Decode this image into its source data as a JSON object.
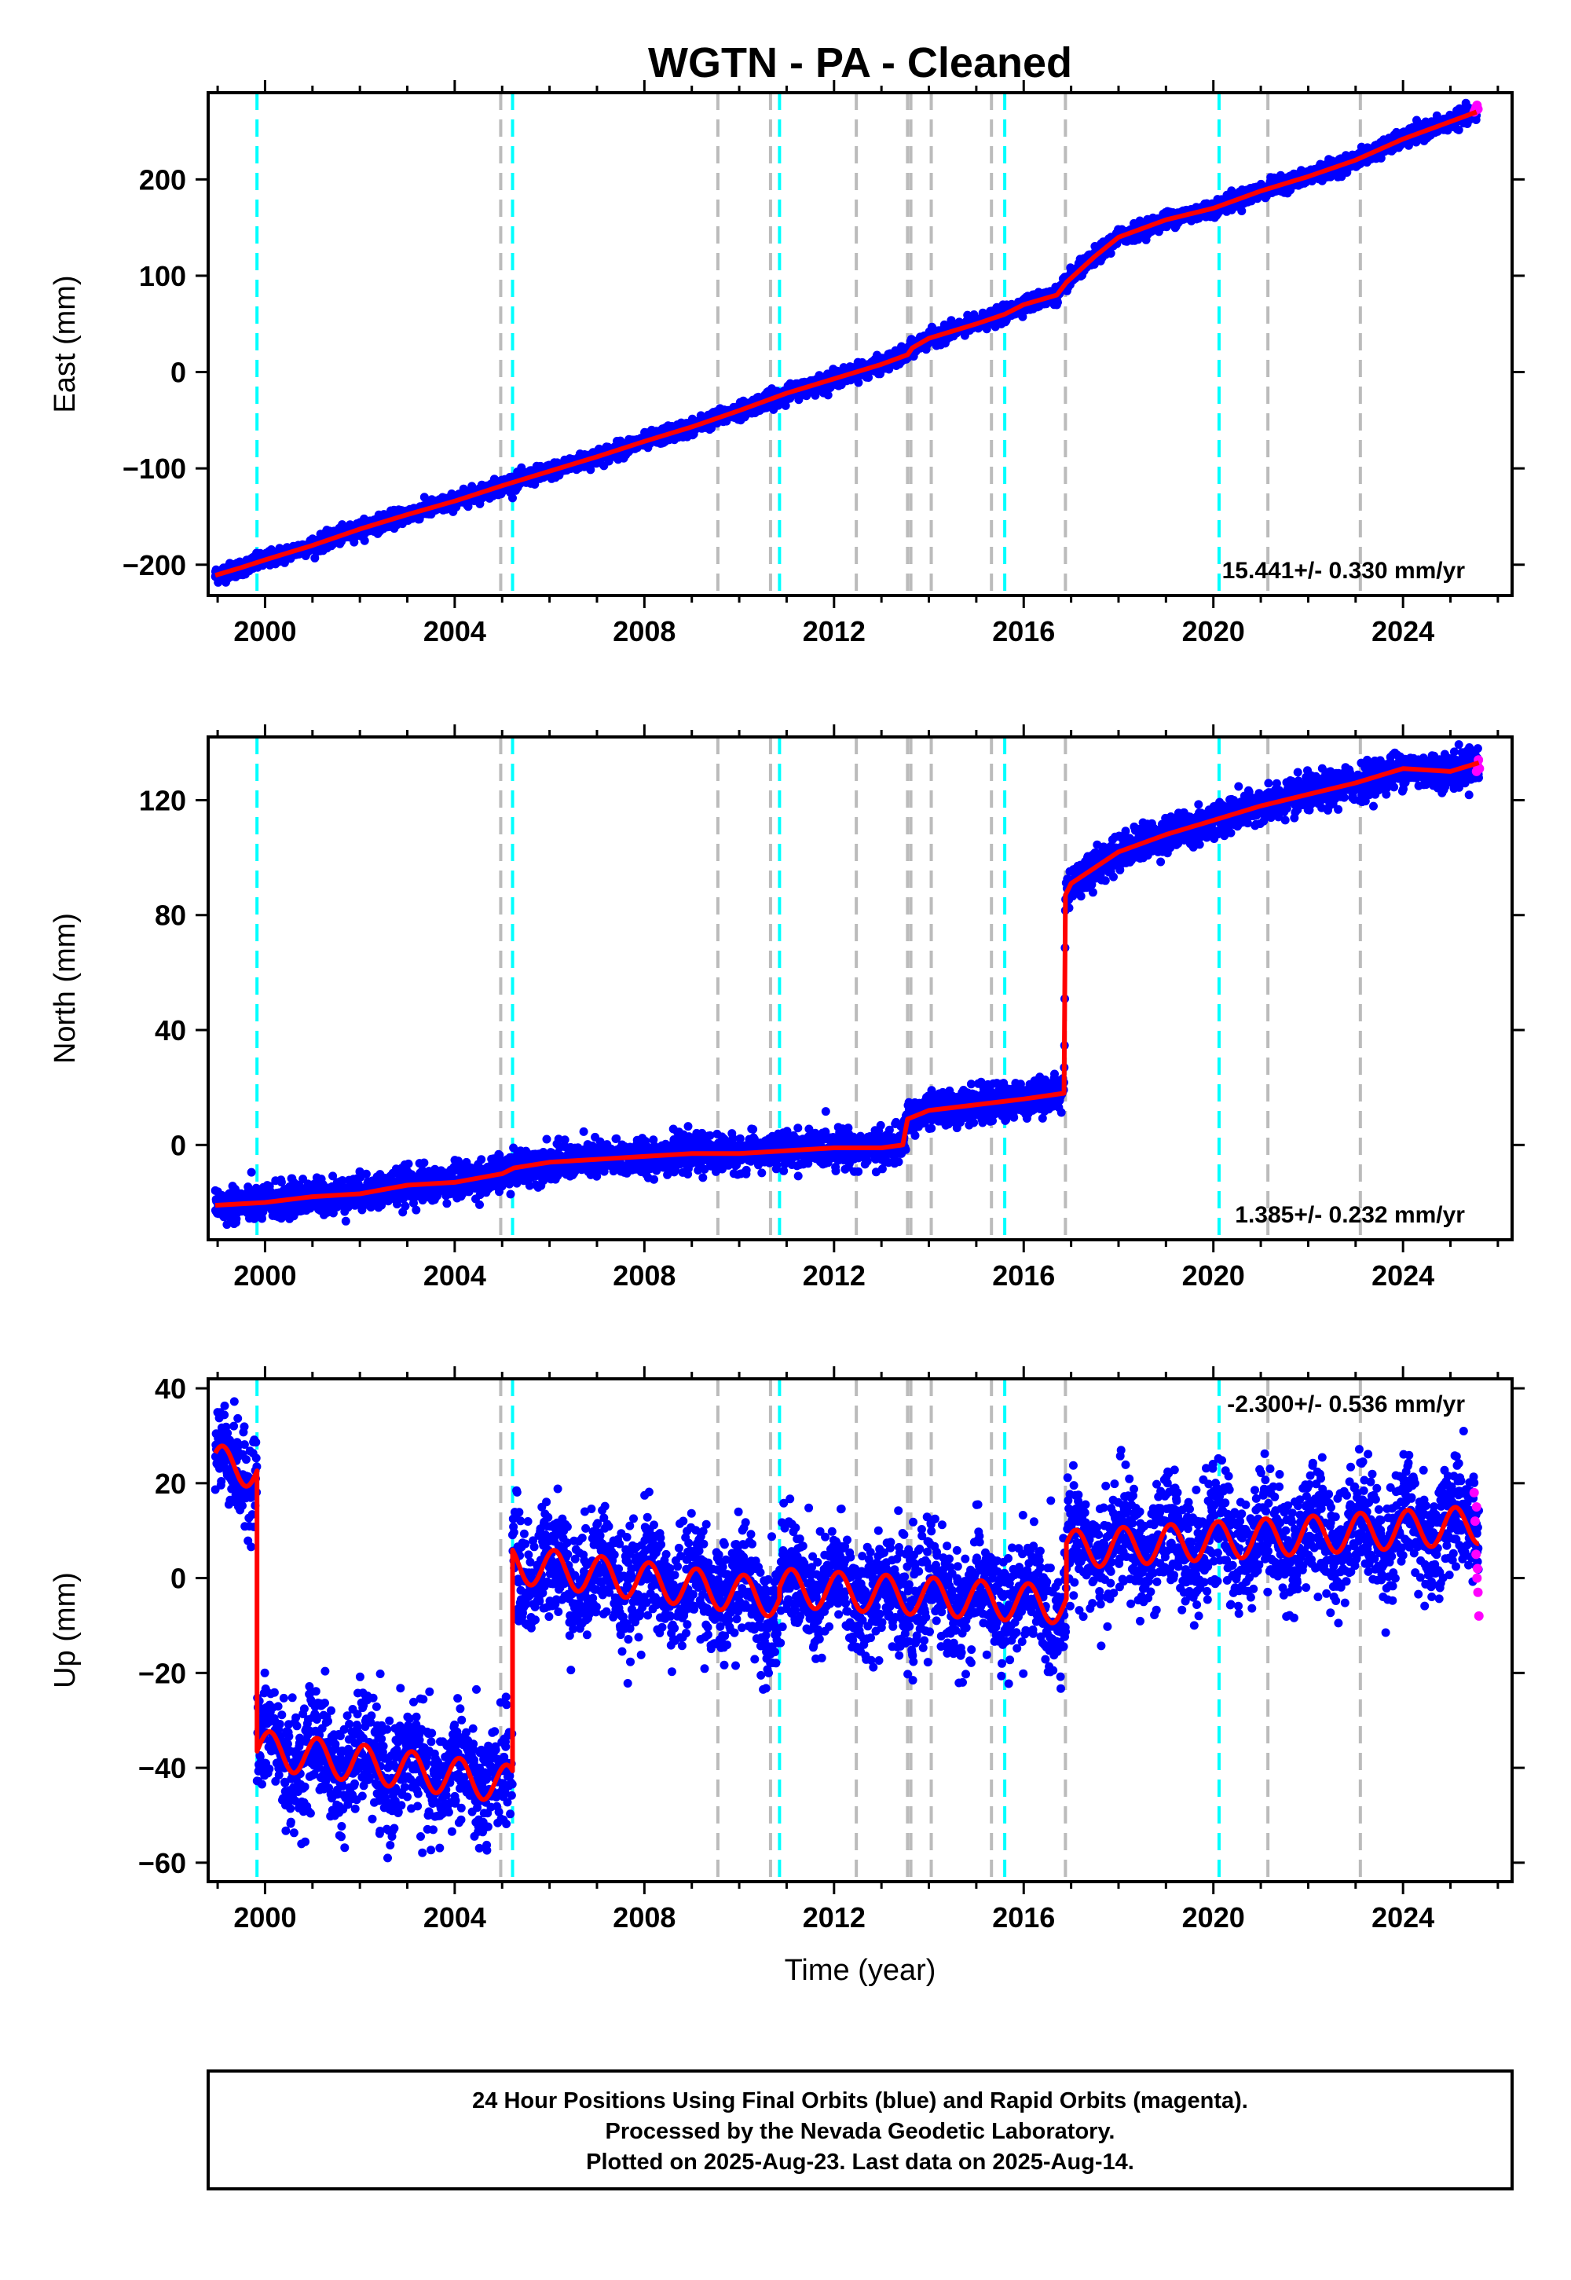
{
  "title": "WGTN  - PA - Cleaned",
  "xlabel": "Time (year)",
  "footer": [
    "24 Hour Positions Using Final Orbits (blue) and Rapid Orbits (magenta).",
    "Processed by the Nevada Geodetic Laboratory.",
    "Plotted on 2025-Aug-23. Last data on 2025-Aug-14."
  ],
  "colors": {
    "final_orbits": "#0000ff",
    "rapid_orbits": "#ff00ff",
    "model": "#ff0000",
    "antenna_change": "#00ffff",
    "earthquake": "#bbbbbb"
  },
  "chart_data": [
    {
      "type": "scatter",
      "panel": "east",
      "ylabel": "East (mm)",
      "rate_label": "15.441+/- 0.330 mm/yr",
      "xlim": [
        1998.8,
        2026.3
      ],
      "ylim": [
        -232,
        290
      ],
      "xticks": [
        2000,
        2004,
        2008,
        2012,
        2016,
        2020,
        2024
      ],
      "yticks": [
        -200,
        -100,
        0,
        100,
        200
      ],
      "model_line": [
        [
          1998.95,
          -211
        ],
        [
          1999.5,
          -203
        ],
        [
          2000,
          -195
        ],
        [
          2001,
          -180
        ],
        [
          2002,
          -163
        ],
        [
          2003,
          -148
        ],
        [
          2004,
          -134
        ],
        [
          2005,
          -118
        ],
        [
          2006,
          -103
        ],
        [
          2007,
          -88
        ],
        [
          2008,
          -72
        ],
        [
          2009,
          -57
        ],
        [
          2010,
          -40
        ],
        [
          2011,
          -22
        ],
        [
          2012,
          -7
        ],
        [
          2013,
          8
        ],
        [
          2013.55,
          18
        ],
        [
          2013.65,
          25
        ],
        [
          2014,
          35
        ],
        [
          2015,
          50
        ],
        [
          2015.6,
          60
        ],
        [
          2016,
          70
        ],
        [
          2016.7,
          80
        ],
        [
          2016.9,
          93
        ],
        [
          2017.5,
          120
        ],
        [
          2018,
          140
        ],
        [
          2019,
          158
        ],
        [
          2020,
          170
        ],
        [
          2021,
          188
        ],
        [
          2022,
          203
        ],
        [
          2023,
          220
        ],
        [
          2024,
          242
        ],
        [
          2025,
          260
        ],
        [
          2025.55,
          270
        ]
      ],
      "rapid_points": [
        [
          2025.5,
          270
        ],
        [
          2025.52,
          272
        ],
        [
          2025.54,
          275
        ],
        [
          2025.56,
          277
        ],
        [
          2025.58,
          273
        ]
      ],
      "noise_amplitude": 4
    },
    {
      "type": "scatter",
      "panel": "north",
      "ylabel": "North (mm)",
      "rate_label": "1.385+/- 0.232 mm/yr",
      "xlim": [
        1998.8,
        2026.3
      ],
      "ylim": [
        -33,
        142
      ],
      "xticks": [
        2000,
        2004,
        2008,
        2012,
        2016,
        2020,
        2024
      ],
      "yticks": [
        0,
        40,
        80,
        120
      ],
      "model_line": [
        [
          1998.95,
          -21
        ],
        [
          2000,
          -20
        ],
        [
          2001,
          -18
        ],
        [
          2002,
          -17
        ],
        [
          2003,
          -14
        ],
        [
          2004,
          -13
        ],
        [
          2005,
          -10
        ],
        [
          2005.25,
          -8
        ],
        [
          2006,
          -6
        ],
        [
          2007,
          -5
        ],
        [
          2008,
          -4
        ],
        [
          2009,
          -3
        ],
        [
          2010,
          -3
        ],
        [
          2011,
          -2
        ],
        [
          2012,
          -1
        ],
        [
          2013,
          -1
        ],
        [
          2013.45,
          0
        ],
        [
          2013.55,
          9
        ],
        [
          2014,
          12
        ],
        [
          2015,
          14
        ],
        [
          2016,
          16
        ],
        [
          2016.85,
          18
        ],
        [
          2016.88,
          87
        ],
        [
          2017,
          91
        ],
        [
          2018,
          102
        ],
        [
          2019,
          108
        ],
        [
          2020,
          113
        ],
        [
          2021,
          118
        ],
        [
          2022,
          122
        ],
        [
          2023,
          126
        ],
        [
          2024,
          131
        ],
        [
          2025,
          130
        ],
        [
          2025.6,
          133
        ]
      ],
      "rapid_points": [
        [
          2025.55,
          130
        ],
        [
          2025.57,
          132
        ],
        [
          2025.59,
          134
        ],
        [
          2025.61,
          131
        ]
      ],
      "noise_amplitude": 3
    },
    {
      "type": "scatter",
      "panel": "up",
      "ylabel": "Up (mm)",
      "rate_label": "-2.300+/- 0.536 mm/yr",
      "xlim": [
        1998.8,
        2026.3
      ],
      "ylim": [
        -64,
        42
      ],
      "xticks": [
        2000,
        2004,
        2008,
        2012,
        2016,
        2020,
        2024
      ],
      "yticks": [
        -60,
        -40,
        -20,
        0,
        20,
        40
      ],
      "segments": [
        {
          "start": 1998.95,
          "end": 1999.83,
          "offset": 24,
          "slope": -1,
          "annual": 4,
          "noise": 5
        },
        {
          "start": 1999.83,
          "end": 2005.22,
          "offset": -36,
          "slope": -1.4,
          "annual": 4,
          "noise": 6
        },
        {
          "start": 2005.22,
          "end": 2010.85,
          "offset": 3,
          "slope": -1.3,
          "annual": 4,
          "noise": 6
        },
        {
          "start": 2010.85,
          "end": 2016.9,
          "offset": -2,
          "slope": -0.6,
          "annual": 4,
          "noise": 6
        },
        {
          "start": 2016.9,
          "end": 2025.6,
          "offset": 6,
          "slope": 0.6,
          "annual": 4,
          "noise": 6
        }
      ],
      "rapid_points": [
        [
          2025.5,
          18
        ],
        [
          2025.52,
          12
        ],
        [
          2025.54,
          5
        ],
        [
          2025.56,
          0
        ],
        [
          2025.58,
          -3
        ],
        [
          2025.6,
          -8
        ],
        [
          2025.55,
          15
        ],
        [
          2025.57,
          2
        ]
      ]
    }
  ],
  "event_lines": {
    "antenna_change": [
      1999.83,
      2005.22,
      2010.85,
      2015.6,
      2020.12
    ],
    "earthquake": [
      2004.97,
      2009.55,
      2010.66,
      2012.47,
      2013.55,
      2013.62,
      2014.05,
      2015.32,
      2016.88,
      2021.15,
      2023.1
    ]
  }
}
